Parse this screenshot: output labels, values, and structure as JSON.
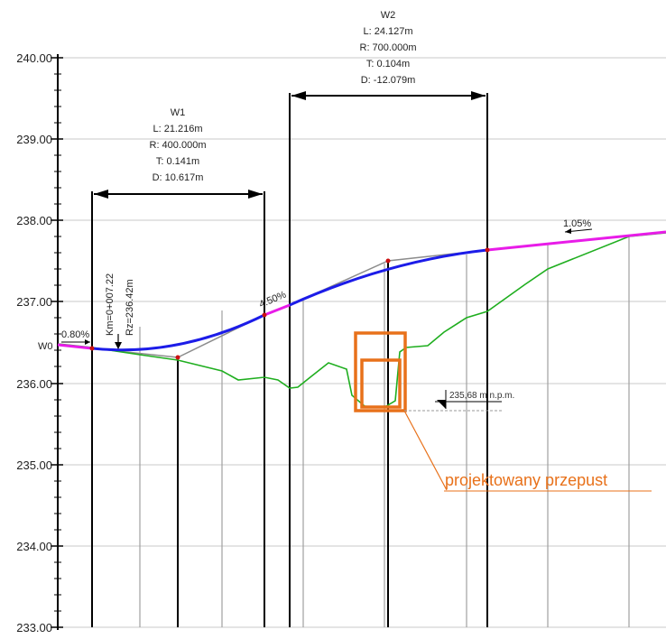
{
  "axis": {
    "ticks": [
      {
        "value": 240.0,
        "label": "240.00"
      },
      {
        "value": 239.0,
        "label": "239.00"
      },
      {
        "value": 238.0,
        "label": "238.00"
      },
      {
        "value": 237.0,
        "label": "237.00"
      },
      {
        "value": 236.0,
        "label": "236.00"
      },
      {
        "value": 235.0,
        "label": "235.00"
      },
      {
        "value": 234.0,
        "label": "234.00"
      },
      {
        "value": 233.0,
        "label": "233.00"
      }
    ]
  },
  "curve_w1": {
    "name": "W1",
    "length": "L: 21.216m",
    "radius": "R: 400.000m",
    "tangent": "T: 0.141m",
    "deflection": "D: 10.617m"
  },
  "curve_w2": {
    "name": "W2",
    "length": "L: 24.127m",
    "radius": "R: 700.000m",
    "tangent": "T: 0.104m",
    "deflection": "D: -12.079m"
  },
  "start_point": {
    "name": "W0",
    "km": "Km=0+007.22",
    "rz": "Rz=236.42m"
  },
  "grades": {
    "start": "0.80%",
    "middle": "4.50%",
    "end": "1.05%"
  },
  "water_level": "235,68 m n.p.m.",
  "culvert": {
    "label": "projektowany przepust"
  },
  "colors": {
    "vertical_curve": "#1c1ce8",
    "grade_line": "#e81ce8",
    "terrain": "#1fae1f",
    "culvert": "#e8711a",
    "tangent": "#8c8c8c",
    "grid": "#c8c8c8"
  }
}
